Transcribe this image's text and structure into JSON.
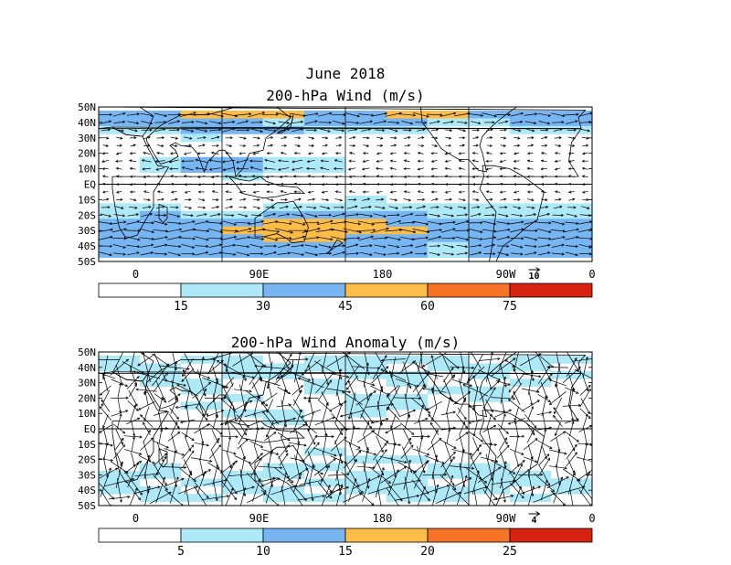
{
  "header": {
    "date": "June 2018"
  },
  "colors": {
    "band_0": "#ffffff",
    "band_1": "#aee9f8",
    "band_2": "#77b6f2",
    "band_3": "#fdbd48",
    "band_4": "#f67325",
    "band_5": "#d6220f",
    "frame": "#000000"
  },
  "chart_data": [
    {
      "type": "heatmap",
      "title": "200-hPa Wind (m/s)",
      "variable": "wind speed with wind vectors",
      "y_tick_labels": [
        "50N",
        "40N",
        "30N",
        "20N",
        "10N",
        "EQ",
        "10S",
        "20S",
        "30S",
        "40S",
        "50S"
      ],
      "x_tick_labels": [
        "0",
        "90E",
        "180",
        "90W",
        "0"
      ],
      "xlim": [
        0,
        360
      ],
      "ylim": [
        -50,
        50
      ],
      "reference_vector_label": "10",
      "colorbar_labels": [
        "15",
        "30",
        "45",
        "60",
        "75"
      ],
      "colorbar_thresholds": [
        15,
        30,
        45,
        60,
        75
      ],
      "speed_by_latitude": [
        {
          "lat": 45,
          "values": [
            34,
            36,
            50,
            52,
            48,
            40,
            44,
            50,
            46,
            42,
            36,
            40
          ]
        },
        {
          "lat": 40,
          "values": [
            30,
            30,
            32,
            30,
            28,
            34,
            36,
            30,
            26,
            24,
            30,
            32
          ]
        },
        {
          "lat": 35,
          "values": [
            20,
            26,
            30,
            36,
            32,
            28,
            22,
            18,
            14,
            12,
            16,
            20
          ]
        },
        {
          "lat": 30,
          "values": [
            10,
            14,
            18,
            12,
            8,
            8,
            10,
            10,
            8,
            8,
            10,
            12
          ]
        },
        {
          "lat": 25,
          "values": [
            6,
            10,
            12,
            8,
            6,
            6,
            8,
            8,
            6,
            6,
            8,
            8
          ]
        },
        {
          "lat": 20,
          "values": [
            8,
            12,
            14,
            10,
            8,
            6,
            6,
            8,
            10,
            8,
            6,
            6
          ]
        },
        {
          "lat": 15,
          "values": [
            12,
            22,
            32,
            34,
            26,
            16,
            10,
            8,
            8,
            10,
            8,
            8
          ]
        },
        {
          "lat": 10,
          "values": [
            8,
            18,
            30,
            32,
            28,
            20,
            14,
            10,
            10,
            10,
            10,
            8
          ]
        },
        {
          "lat": 5,
          "values": [
            6,
            10,
            14,
            16,
            14,
            10,
            8,
            8,
            8,
            8,
            8,
            8
          ]
        },
        {
          "lat": 0,
          "values": [
            6,
            6,
            8,
            8,
            8,
            6,
            6,
            6,
            6,
            6,
            6,
            6
          ]
        },
        {
          "lat": -5,
          "values": [
            6,
            6,
            8,
            8,
            10,
            8,
            8,
            8,
            8,
            8,
            6,
            6
          ]
        },
        {
          "lat": -10,
          "values": [
            10,
            12,
            10,
            10,
            12,
            14,
            16,
            14,
            12,
            10,
            10,
            10
          ]
        },
        {
          "lat": -15,
          "values": [
            18,
            18,
            14,
            14,
            20,
            24,
            26,
            22,
            18,
            16,
            16,
            18
          ]
        },
        {
          "lat": -20,
          "values": [
            28,
            30,
            26,
            24,
            30,
            34,
            36,
            32,
            28,
            26,
            28,
            28
          ]
        },
        {
          "lat": -25,
          "values": [
            38,
            40,
            40,
            44,
            46,
            48,
            50,
            44,
            40,
            38,
            38,
            38
          ]
        },
        {
          "lat": -30,
          "values": [
            42,
            44,
            44,
            54,
            58,
            56,
            58,
            52,
            42,
            40,
            40,
            42
          ]
        },
        {
          "lat": -35,
          "values": [
            40,
            42,
            42,
            44,
            46,
            46,
            44,
            42,
            38,
            38,
            38,
            40
          ]
        },
        {
          "lat": -40,
          "values": [
            36,
            38,
            38,
            36,
            34,
            34,
            32,
            30,
            28,
            30,
            32,
            34
          ]
        },
        {
          "lat": -45,
          "values": [
            34,
            36,
            38,
            38,
            36,
            36,
            34,
            30,
            28,
            30,
            32,
            34
          ]
        }
      ]
    },
    {
      "type": "heatmap",
      "title": "200-hPa Wind Anomaly (m/s)",
      "variable": "wind anomaly magnitude with anomaly vectors",
      "y_tick_labels": [
        "50N",
        "40N",
        "30N",
        "20N",
        "10N",
        "EQ",
        "10S",
        "20S",
        "30S",
        "40S",
        "50S"
      ],
      "x_tick_labels": [
        "0",
        "90E",
        "180",
        "90W",
        "0"
      ],
      "xlim": [
        0,
        360
      ],
      "ylim": [
        -50,
        50
      ],
      "reference_vector_label": "4",
      "colorbar_labels": [
        "5",
        "10",
        "15",
        "20",
        "25"
      ],
      "colorbar_thresholds": [
        5,
        10,
        15,
        20,
        25
      ],
      "speed_by_latitude": [
        {
          "lat": 45,
          "values": [
            6,
            4,
            6,
            5,
            4,
            6,
            7,
            5,
            6,
            4,
            5,
            6
          ]
        },
        {
          "lat": 40,
          "values": [
            5,
            7,
            4,
            6,
            7,
            5,
            6,
            4,
            5,
            7,
            6,
            4
          ]
        },
        {
          "lat": 35,
          "values": [
            4,
            6,
            3,
            5,
            6,
            4,
            5,
            6,
            3,
            5,
            4,
            5
          ]
        },
        {
          "lat": 30,
          "values": [
            3,
            5,
            6,
            2,
            4,
            6,
            3,
            5,
            4,
            2,
            5,
            3
          ]
        },
        {
          "lat": 25,
          "values": [
            2,
            4,
            5,
            3,
            2,
            5,
            4,
            2,
            5,
            6,
            3,
            2
          ]
        },
        {
          "lat": 20,
          "values": [
            3,
            2,
            4,
            6,
            3,
            2,
            5,
            6,
            4,
            5,
            2,
            4
          ]
        },
        {
          "lat": 15,
          "values": [
            2,
            3,
            5,
            4,
            2,
            3,
            6,
            5,
            3,
            2,
            4,
            3
          ]
        },
        {
          "lat": 10,
          "values": [
            3,
            2,
            3,
            5,
            6,
            4,
            5,
            3,
            2,
            3,
            2,
            2
          ]
        },
        {
          "lat": 5,
          "values": [
            2,
            3,
            2,
            3,
            5,
            4,
            3,
            2,
            3,
            2,
            3,
            2
          ]
        },
        {
          "lat": 0,
          "values": [
            2,
            2,
            3,
            2,
            3,
            2,
            2,
            3,
            2,
            2,
            2,
            2
          ]
        },
        {
          "lat": -5,
          "values": [
            3,
            2,
            2,
            3,
            2,
            3,
            4,
            3,
            2,
            3,
            2,
            3
          ]
        },
        {
          "lat": -10,
          "values": [
            2,
            3,
            2,
            2,
            3,
            4,
            3,
            2,
            3,
            2,
            3,
            2
          ]
        },
        {
          "lat": -15,
          "values": [
            3,
            4,
            3,
            2,
            3,
            5,
            4,
            3,
            4,
            3,
            2,
            3
          ]
        },
        {
          "lat": -20,
          "values": [
            2,
            3,
            4,
            3,
            2,
            3,
            5,
            6,
            4,
            3,
            2,
            3
          ]
        },
        {
          "lat": -25,
          "values": [
            4,
            5,
            3,
            4,
            5,
            6,
            3,
            4,
            5,
            6,
            4,
            3
          ]
        },
        {
          "lat": -30,
          "values": [
            6,
            5,
            4,
            6,
            5,
            4,
            6,
            7,
            5,
            6,
            5,
            4
          ]
        },
        {
          "lat": -35,
          "values": [
            7,
            4,
            5,
            6,
            4,
            5,
            7,
            6,
            4,
            5,
            6,
            5
          ]
        },
        {
          "lat": -40,
          "values": [
            5,
            6,
            4,
            5,
            6,
            4,
            5,
            6,
            7,
            5,
            4,
            6
          ]
        },
        {
          "lat": -45,
          "values": [
            4,
            5,
            6,
            4,
            5,
            6,
            4,
            5,
            6,
            4,
            5,
            4
          ]
        }
      ]
    }
  ]
}
